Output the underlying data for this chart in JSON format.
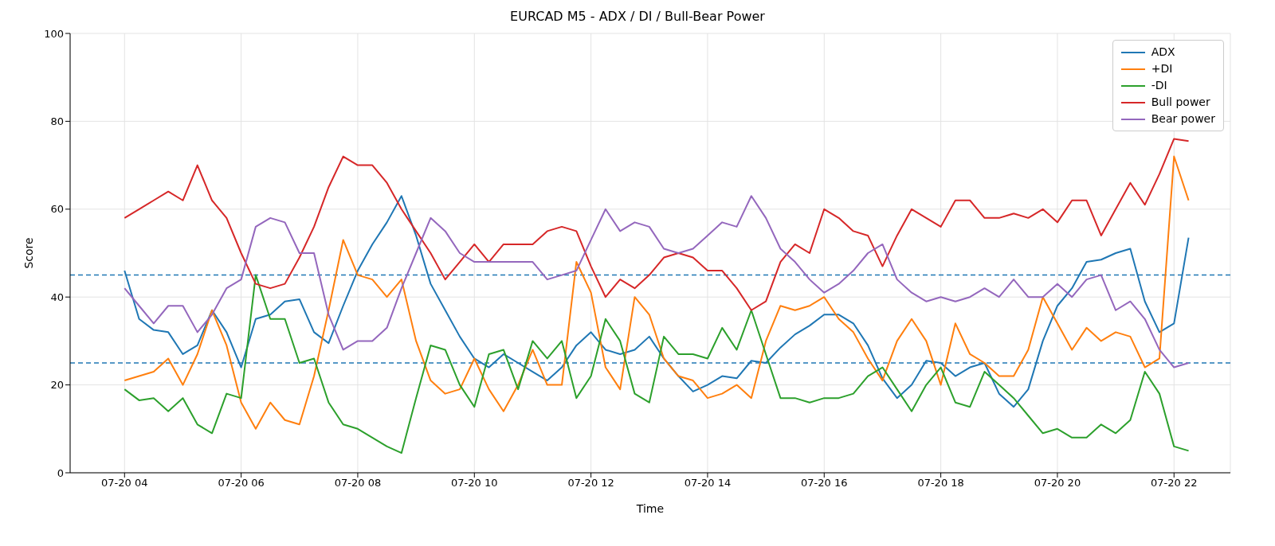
{
  "chart_data": {
    "type": "line",
    "title": "EURCAD M5 - ADX / DI / Bull-Bear Power",
    "xlabel": "Time",
    "ylabel": "Score",
    "x": [
      "--07-20T04:00",
      "--07-20T04:15",
      "--07-20T04:30",
      "--07-20T04:45",
      "--07-20T05:00",
      "--07-20T05:15",
      "--07-20T05:30",
      "--07-20T05:45",
      "--07-20T06:00",
      "--07-20T06:15",
      "--07-20T06:30",
      "--07-20T06:45",
      "--07-20T07:00",
      "--07-20T07:15",
      "--07-20T07:30",
      "--07-20T07:45",
      "--07-20T08:00",
      "--07-20T08:15",
      "--07-20T08:30",
      "--07-20T08:45",
      "--07-20T09:00",
      "--07-20T09:15",
      "--07-20T09:30",
      "--07-20T09:45",
      "--07-20T10:00",
      "--07-20T10:15",
      "--07-20T10:30",
      "--07-20T10:45",
      "--07-20T11:00",
      "--07-20T11:15",
      "--07-20T11:30",
      "--07-20T11:45",
      "--07-20T12:00",
      "--07-20T12:15",
      "--07-20T12:30",
      "--07-20T12:45",
      "--07-20T13:00",
      "--07-20T13:15",
      "--07-20T13:30",
      "--07-20T13:45",
      "--07-20T14:00",
      "--07-20T14:15",
      "--07-20T14:30",
      "--07-20T14:45",
      "--07-20T15:00",
      "--07-20T15:15",
      "--07-20T15:30",
      "--07-20T15:45",
      "--07-20T16:00",
      "--07-20T16:15",
      "--07-20T16:30",
      "--07-20T16:45",
      "--07-20T17:00",
      "--07-20T17:15",
      "--07-20T17:30",
      "--07-20T17:45",
      "--07-20T18:00",
      "--07-20T18:15",
      "--07-20T18:30",
      "--07-20T18:45",
      "--07-20T19:00",
      "--07-20T19:15",
      "--07-20T19:30",
      "--07-20T19:45",
      "--07-20T20:00",
      "--07-20T20:15",
      "--07-20T20:30",
      "--07-20T20:45",
      "--07-20T21:00",
      "--07-20T21:15",
      "--07-20T21:30",
      "--07-20T21:45",
      "--07-20T22:00",
      "--07-20T22:15"
    ],
    "series": [
      {
        "name": "ADX",
        "color": "#1f77b4",
        "values": [
          46,
          35,
          32.5,
          32,
          27,
          29,
          37,
          32,
          24,
          35,
          36,
          39,
          39.5,
          32,
          29.5,
          38,
          46,
          52,
          57,
          63,
          54,
          43,
          37,
          31,
          26,
          24,
          27,
          25,
          23,
          21,
          24,
          29,
          32,
          28,
          27,
          28,
          31,
          26,
          22,
          18.5,
          20,
          22,
          21.5,
          25.5,
          25,
          28.5,
          31.5,
          33.5,
          36,
          36,
          34,
          29,
          21.5,
          17,
          20,
          25.5,
          25,
          22,
          24,
          25,
          18,
          15,
          19,
          30,
          38,
          42,
          48,
          48.5,
          50,
          51,
          39,
          32,
          34,
          53.5
        ]
      },
      {
        "name": "+DI",
        "color": "#ff7f0e",
        "values": [
          21,
          22,
          23,
          26,
          20,
          27,
          37,
          29,
          16,
          10,
          16,
          12,
          11,
          22,
          37,
          53,
          45,
          44,
          40,
          44,
          30,
          21,
          18,
          19,
          26,
          19,
          14,
          20,
          28,
          20,
          20,
          48,
          41,
          24,
          19,
          40,
          36,
          26,
          22,
          21,
          17,
          18,
          20,
          17,
          30,
          38,
          37,
          38,
          40,
          35,
          32,
          26,
          21,
          30,
          35,
          30,
          20,
          34,
          27,
          25,
          22,
          22,
          28,
          40,
          34,
          28,
          33,
          30,
          32,
          31,
          24,
          26,
          72,
          62
        ]
      },
      {
        "name": "-DI",
        "color": "#2ca02c",
        "values": [
          19,
          16.5,
          17,
          14,
          17,
          11,
          9,
          18,
          17,
          45,
          35,
          35,
          25,
          26,
          16,
          11,
          10,
          8,
          6,
          4.5,
          17,
          29,
          28,
          20,
          15,
          27,
          28,
          19,
          30,
          26,
          30,
          17,
          22,
          35,
          30,
          18,
          16,
          31,
          27,
          27,
          26,
          33,
          28,
          37,
          27,
          17,
          17,
          16,
          17,
          17,
          18,
          22,
          24,
          19,
          14,
          20,
          24,
          16,
          15,
          23,
          20,
          17,
          13,
          9,
          10,
          8,
          8,
          11,
          9,
          12,
          23,
          18,
          6,
          5
        ]
      },
      {
        "name": "Bull power",
        "color": "#d62728",
        "values": [
          58,
          60,
          62,
          64,
          62,
          70,
          62,
          58,
          50,
          43,
          42,
          43,
          49,
          56,
          65,
          72,
          70,
          70,
          66,
          60,
          55,
          50,
          44,
          48,
          52,
          48,
          52,
          52,
          52,
          55,
          56,
          55,
          47,
          40,
          44,
          42,
          45,
          49,
          50,
          49,
          46,
          46,
          42,
          37,
          39,
          48,
          52,
          50,
          60,
          58,
          55,
          54,
          47,
          54,
          60,
          58,
          56,
          62,
          62,
          58,
          58,
          59,
          58,
          60,
          57,
          62,
          62,
          54,
          60,
          66,
          61,
          68,
          76,
          75.5
        ]
      },
      {
        "name": "Bear power",
        "color": "#9467bd",
        "values": [
          42,
          38,
          34,
          38,
          38,
          32,
          36,
          42,
          44,
          56,
          58,
          57,
          50,
          50,
          36,
          28,
          30,
          30,
          33,
          42,
          50,
          58,
          55,
          50,
          48,
          48,
          48,
          48,
          48,
          44,
          45,
          46,
          53,
          60,
          55,
          57,
          56,
          51,
          50,
          51,
          54,
          57,
          56,
          63,
          58,
          51,
          48,
          44,
          41,
          43,
          46,
          50,
          52,
          44,
          41,
          39,
          40,
          39,
          40,
          42,
          40,
          44,
          40,
          40,
          43,
          40,
          44,
          45,
          37,
          39,
          35,
          28,
          24,
          25
        ]
      }
    ],
    "xlim": [
      "--07-20T03:04",
      "--07-20T22:58"
    ],
    "ylim": [
      0,
      100
    ],
    "xticks": [
      {
        "value": "--07-20T04:00",
        "label": "07-20 04"
      },
      {
        "value": "--07-20T06:00",
        "label": "07-20 06"
      },
      {
        "value": "--07-20T08:00",
        "label": "07-20 08"
      },
      {
        "value": "--07-20T10:00",
        "label": "07-20 10"
      },
      {
        "value": "--07-20T12:00",
        "label": "07-20 12"
      },
      {
        "value": "--07-20T14:00",
        "label": "07-20 14"
      },
      {
        "value": "--07-20T16:00",
        "label": "07-20 16"
      },
      {
        "value": "--07-20T18:00",
        "label": "07-20 18"
      },
      {
        "value": "--07-20T20:00",
        "label": "07-20 20"
      },
      {
        "value": "--07-20T22:00",
        "label": "07-20 22"
      }
    ],
    "yticks": [
      0,
      20,
      40,
      60,
      80,
      100
    ],
    "ref_lines": [
      {
        "axis": "y",
        "value": 45,
        "color": "#1f77b4",
        "line_style": "dashed"
      },
      {
        "axis": "y",
        "value": 25,
        "color": "#1f77b4",
        "line_style": "dashed"
      }
    ],
    "grid": true,
    "legend": "top right"
  }
}
